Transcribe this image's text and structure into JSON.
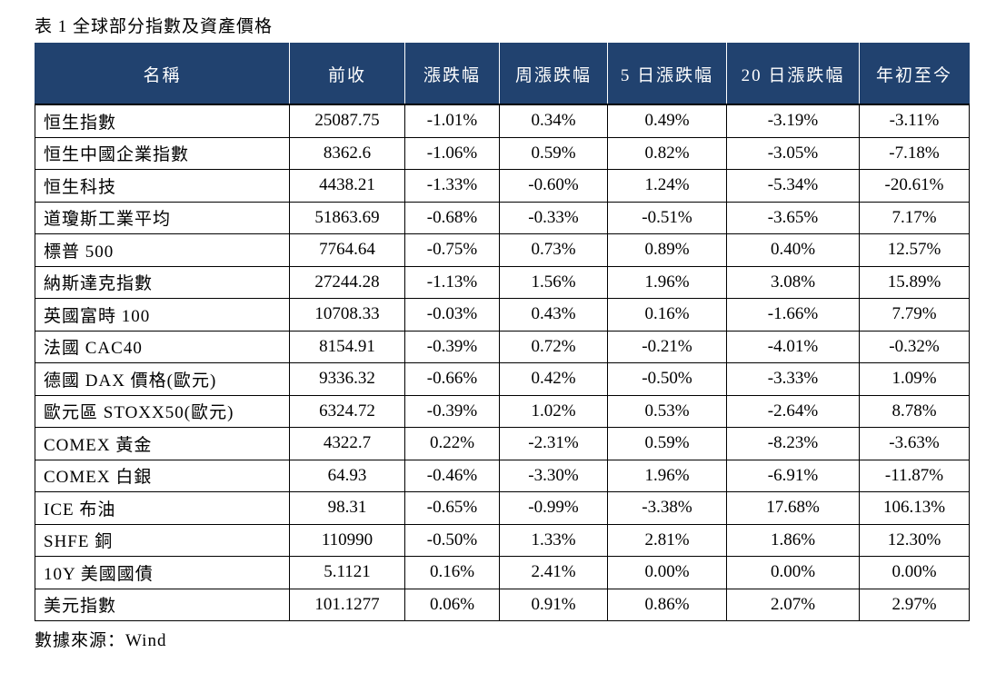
{
  "caption": "表 1 全球部分指數及資產價格",
  "source": "數據來源：Wind",
  "table": {
    "headers": [
      "名稱",
      "前收",
      "漲跌幅",
      "周漲跌幅",
      "5 日漲跌幅",
      "20 日漲跌幅",
      "年初至今"
    ],
    "rows": [
      [
        "恒生指數",
        "25087.75",
        "-1.01%",
        "0.34%",
        "0.49%",
        "-3.19%",
        "-3.11%"
      ],
      [
        "恒生中國企業指數",
        "8362.6",
        "-1.06%",
        "0.59%",
        "0.82%",
        "-3.05%",
        "-7.18%"
      ],
      [
        "恒生科技",
        "4438.21",
        "-1.33%",
        "-0.60%",
        "1.24%",
        "-5.34%",
        "-20.61%"
      ],
      [
        "道瓊斯工業平均",
        "51863.69",
        "-0.68%",
        "-0.33%",
        "-0.51%",
        "-3.65%",
        "7.17%"
      ],
      [
        "標普 500",
        "7764.64",
        "-0.75%",
        "0.73%",
        "0.89%",
        "0.40%",
        "12.57%"
      ],
      [
        "納斯達克指數",
        "27244.28",
        "-1.13%",
        "1.56%",
        "1.96%",
        "3.08%",
        "15.89%"
      ],
      [
        "英國富時 100",
        "10708.33",
        "-0.03%",
        "0.43%",
        "0.16%",
        "-1.66%",
        "7.79%"
      ],
      [
        "法國 CAC40",
        "8154.91",
        "-0.39%",
        "0.72%",
        "-0.21%",
        "-4.01%",
        "-0.32%"
      ],
      [
        "德國 DAX 價格(歐元)",
        "9336.32",
        "-0.66%",
        "0.42%",
        "-0.50%",
        "-3.33%",
        "1.09%"
      ],
      [
        "歐元區 STOXX50(歐元)",
        "6324.72",
        "-0.39%",
        "1.02%",
        "0.53%",
        "-2.64%",
        "8.78%"
      ],
      [
        "COMEX 黃金",
        "4322.7",
        "0.22%",
        "-2.31%",
        "0.59%",
        "-8.23%",
        "-3.63%"
      ],
      [
        "COMEX 白銀",
        "64.93",
        "-0.46%",
        "-3.30%",
        "1.96%",
        "-6.91%",
        "-11.87%"
      ],
      [
        "ICE 布油",
        "98.31",
        "-0.65%",
        "-0.99%",
        "-3.38%",
        "17.68%",
        "106.13%"
      ],
      [
        "SHFE 銅",
        "110990",
        "-0.50%",
        "1.33%",
        "2.81%",
        "1.86%",
        "12.30%"
      ],
      [
        "10Y 美國國債",
        "5.1121",
        "0.16%",
        "2.41%",
        "0.00%",
        "0.00%",
        "0.00%"
      ],
      [
        "美元指數",
        "101.1277",
        "0.06%",
        "0.91%",
        "0.86%",
        "2.07%",
        "2.97%"
      ]
    ]
  },
  "colors": {
    "header_bg": "#21426f",
    "header_text": "#ffffff",
    "border": "#000000"
  }
}
